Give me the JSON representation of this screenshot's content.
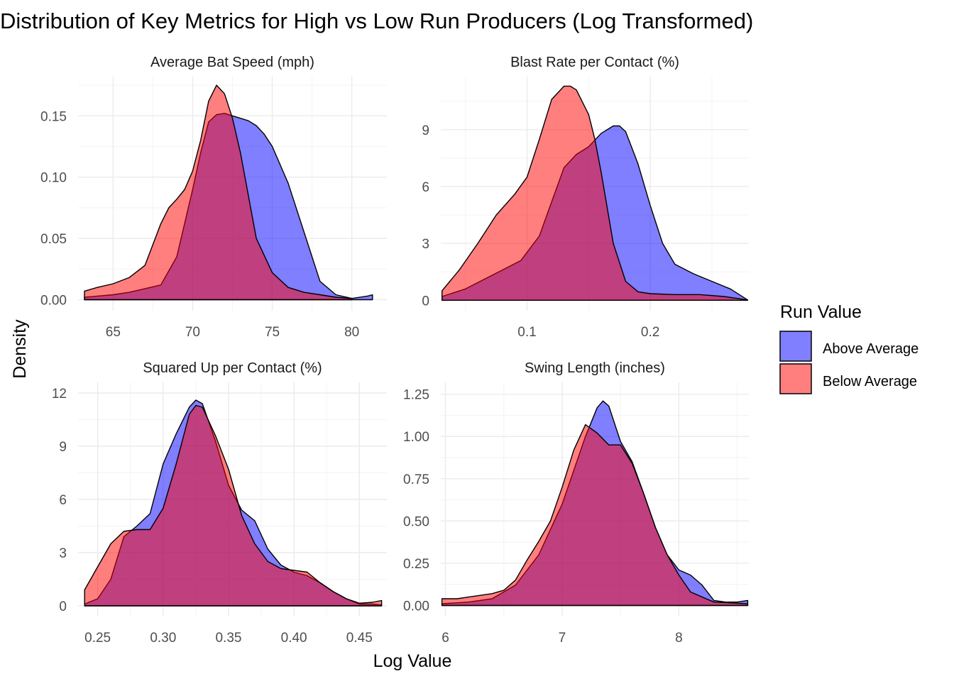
{
  "chart_data": {
    "type": "area",
    "title": "Distribution of Key Metrics for High vs Low Run Producers (Log Transformed)",
    "xlabel": "Log Value",
    "ylabel": "Density",
    "grid": true,
    "legend": {
      "title": "Run Value",
      "placement": "right",
      "entries": [
        {
          "name": "Above Average",
          "color": "#0000FF",
          "opacity": 0.5
        },
        {
          "name": "Below Average",
          "color": "#FF0000",
          "opacity": 0.5
        }
      ]
    },
    "colors": {
      "Above Average": "#0000FF",
      "Below Average": "#FF0000",
      "outline": "#000000"
    },
    "panels": [
      {
        "title": "Average Bat Speed (mph)",
        "xlim": [
          62.8,
          82.2
        ],
        "ylim": [
          -0.009,
          0.182
        ],
        "x_ticks": [
          65,
          70,
          75,
          80
        ],
        "x_tick_labels": [
          "65",
          "70",
          "75",
          "80"
        ],
        "y_ticks": [
          0,
          0.05,
          0.1,
          0.15
        ],
        "y_tick_labels": [
          "0.00",
          "0.05",
          "0.10",
          "0.15"
        ],
        "series": [
          {
            "name": "Above Average",
            "x": [
              63.2,
              65,
              66,
              67,
              68,
              69,
              70,
              70.5,
              71,
              71.5,
              72,
              72.5,
              73,
              73.5,
              74,
              74.5,
              75,
              76,
              77,
              78,
              79,
              80,
              81,
              81.3
            ],
            "y": [
              0.002,
              0.004,
              0.006,
              0.009,
              0.012,
              0.035,
              0.09,
              0.12,
              0.145,
              0.151,
              0.152,
              0.15,
              0.148,
              0.146,
              0.142,
              0.135,
              0.125,
              0.095,
              0.055,
              0.015,
              0.004,
              0.001,
              0.003,
              0.004
            ]
          },
          {
            "name": "Below Average",
            "x": [
              63.2,
              64,
              65,
              66,
              67,
              68,
              68.5,
              69,
              69.5,
              70,
              70.5,
              71,
              71.5,
              72,
              72.5,
              73,
              73.5,
              74,
              75,
              76,
              77,
              78,
              79,
              80
            ],
            "y": [
              0.007,
              0.01,
              0.013,
              0.018,
              0.028,
              0.062,
              0.075,
              0.082,
              0.09,
              0.105,
              0.13,
              0.162,
              0.175,
              0.168,
              0.148,
              0.12,
              0.085,
              0.05,
              0.022,
              0.01,
              0.006,
              0.004,
              0.002,
              0.001
            ]
          }
        ]
      },
      {
        "title": "Blast Rate per Contact (%)",
        "xlim": [
          0.03,
          0.28
        ],
        "ylim": [
          -0.55,
          11.8
        ],
        "x_ticks": [
          0.1,
          0.2
        ],
        "x_tick_labels": [
          "0.1",
          "0.2"
        ],
        "y_ticks": [
          0,
          3,
          6,
          9
        ],
        "y_tick_labels": [
          "0",
          "3",
          "6",
          "9"
        ],
        "series": [
          {
            "name": "Above Average",
            "x": [
              0.031,
              0.05,
              0.065,
              0.08,
              0.095,
              0.11,
              0.12,
              0.13,
              0.14,
              0.15,
              0.16,
              0.17,
              0.175,
              0.18,
              0.19,
              0.2,
              0.21,
              0.22,
              0.235,
              0.25,
              0.265,
              0.279
            ],
            "y": [
              0.2,
              0.6,
              1.1,
              1.6,
              2.1,
              3.4,
              5.2,
              7.0,
              7.7,
              8.1,
              8.8,
              9.2,
              9.2,
              8.9,
              7.2,
              5.0,
              3.0,
              1.9,
              1.4,
              1.0,
              0.6,
              0.02
            ]
          },
          {
            "name": "Below Average",
            "x": [
              0.031,
              0.045,
              0.06,
              0.075,
              0.09,
              0.1,
              0.11,
              0.12,
              0.13,
              0.135,
              0.14,
              0.15,
              0.155,
              0.16,
              0.17,
              0.18,
              0.19,
              0.2,
              0.22,
              0.24,
              0.26,
              0.279
            ],
            "y": [
              0.5,
              1.6,
              3.0,
              4.5,
              5.6,
              6.5,
              8.5,
              10.6,
              11.3,
              11.3,
              11.1,
              9.8,
              8.5,
              6.8,
              3.0,
              1.0,
              0.45,
              0.35,
              0.3,
              0.3,
              0.2,
              0.02
            ]
          }
        ]
      },
      {
        "title": "Squared Up per Contact (%)",
        "xlim": [
          0.235,
          0.471
        ],
        "ylim": [
          -0.6,
          12.6
        ],
        "x_ticks": [
          0.25,
          0.3,
          0.35,
          0.4,
          0.45
        ],
        "x_tick_labels": [
          "0.25",
          "0.30",
          "0.35",
          "0.40",
          "0.45"
        ],
        "y_ticks": [
          0,
          3,
          6,
          9,
          12
        ],
        "y_tick_labels": [
          "0",
          "3",
          "6",
          "9",
          "12"
        ],
        "series": [
          {
            "name": "Above Average",
            "x": [
              0.24,
              0.25,
              0.26,
              0.27,
              0.28,
              0.29,
              0.3,
              0.31,
              0.32,
              0.325,
              0.33,
              0.34,
              0.35,
              0.36,
              0.37,
              0.38,
              0.39,
              0.4,
              0.41,
              0.42,
              0.43,
              0.44,
              0.45,
              0.46,
              0.467
            ],
            "y": [
              0.1,
              0.4,
              1.5,
              3.9,
              4.5,
              5.2,
              8.0,
              9.7,
              11.2,
              11.6,
              11.4,
              9.3,
              6.8,
              5.4,
              4.8,
              3.2,
              2.3,
              1.9,
              1.7,
              1.3,
              0.8,
              0.4,
              0.1,
              0.1,
              0.05
            ]
          },
          {
            "name": "Below Average",
            "x": [
              0.24,
              0.25,
              0.26,
              0.27,
              0.28,
              0.29,
              0.3,
              0.31,
              0.32,
              0.325,
              0.33,
              0.34,
              0.35,
              0.36,
              0.37,
              0.38,
              0.39,
              0.4,
              0.41,
              0.42,
              0.43,
              0.44,
              0.45,
              0.46,
              0.467
            ],
            "y": [
              0.9,
              2.2,
              3.5,
              4.2,
              4.3,
              4.3,
              5.5,
              8.0,
              10.8,
              11.3,
              11.2,
              9.6,
              7.7,
              5.1,
              3.5,
              2.5,
              2.1,
              2.0,
              1.9,
              1.3,
              0.8,
              0.4,
              0.15,
              0.2,
              0.3
            ]
          }
        ]
      },
      {
        "title": "Swing Length (inches)",
        "xlim": [
          5.96,
          8.6
        ],
        "ylim": [
          -0.065,
          1.32
        ],
        "x_ticks": [
          6,
          7,
          8
        ],
        "x_tick_labels": [
          "6",
          "7",
          "8"
        ],
        "y_ticks": [
          0,
          0.25,
          0.5,
          0.75,
          1.0,
          1.25
        ],
        "y_tick_labels": [
          "0.00",
          "0.25",
          "0.50",
          "0.75",
          "1.00",
          "1.25"
        ],
        "series": [
          {
            "name": "Above Average",
            "x": [
              5.97,
              6.2,
              6.4,
              6.6,
              6.8,
              6.9,
              7.0,
              7.1,
              7.2,
              7.3,
              7.35,
              7.4,
              7.5,
              7.6,
              7.7,
              7.8,
              7.9,
              8.0,
              8.1,
              8.2,
              8.3,
              8.4,
              8.5,
              8.59
            ],
            "y": [
              0.01,
              0.02,
              0.04,
              0.12,
              0.3,
              0.45,
              0.6,
              0.8,
              1.0,
              1.17,
              1.21,
              1.18,
              0.97,
              0.85,
              0.66,
              0.46,
              0.3,
              0.21,
              0.18,
              0.12,
              0.03,
              0.02,
              0.02,
              0.03
            ]
          },
          {
            "name": "Below Average",
            "x": [
              5.97,
              6.1,
              6.2,
              6.3,
              6.4,
              6.5,
              6.6,
              6.7,
              6.8,
              6.9,
              7.0,
              7.1,
              7.2,
              7.3,
              7.4,
              7.5,
              7.6,
              7.7,
              7.8,
              7.9,
              8.0,
              8.1,
              8.3,
              8.59
            ],
            "y": [
              0.04,
              0.04,
              0.05,
              0.06,
              0.07,
              0.09,
              0.15,
              0.27,
              0.38,
              0.5,
              0.7,
              0.92,
              1.07,
              1.02,
              0.95,
              0.95,
              0.84,
              0.66,
              0.46,
              0.3,
              0.18,
              0.08,
              0.02,
              0.01
            ]
          }
        ]
      }
    ]
  }
}
